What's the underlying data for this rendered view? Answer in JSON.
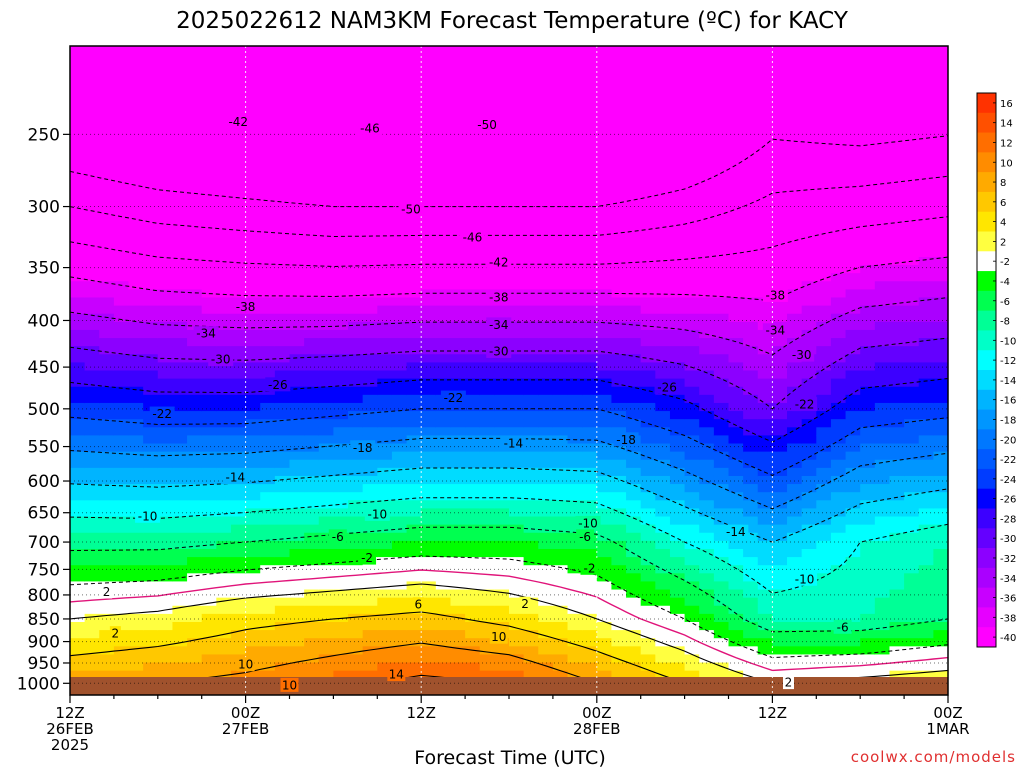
{
  "chart_data": {
    "type": "heatmap",
    "title": "2025022612 NAM3KM Forecast Temperature (ºC) for KACY",
    "xlabel": "Forecast Time (UTC)",
    "ylabel": "",
    "y_scale": "log-pressure",
    "y_ticks": [
      250,
      300,
      350,
      400,
      450,
      500,
      550,
      600,
      650,
      700,
      750,
      800,
      850,
      900,
      950,
      1000
    ],
    "y_range_hpa": [
      1030,
      200
    ],
    "x_range_hours": [
      0,
      60
    ],
    "x_ticks": [
      {
        "hour": 0,
        "line1": "12Z",
        "line2": "26FEB",
        "line3": "2025"
      },
      {
        "hour": 12,
        "line1": "00Z",
        "line2": "27FEB",
        "line3": ""
      },
      {
        "hour": 24,
        "line1": "12Z",
        "line2": "",
        "line3": ""
      },
      {
        "hour": 36,
        "line1": "00Z",
        "line2": "28FEB",
        "line3": ""
      },
      {
        "hour": 48,
        "line1": "12Z",
        "line2": "",
        "line3": ""
      },
      {
        "hour": 60,
        "line1": "00Z",
        "line2": "1MAR",
        "line3": ""
      }
    ],
    "grid": true,
    "legend": "right",
    "colorbar": {
      "levels": [
        16,
        14,
        12,
        10,
        8,
        6,
        4,
        2,
        -2,
        -4,
        -6,
        -8,
        -10,
        -12,
        -14,
        -16,
        -18,
        -20,
        -22,
        -24,
        -26,
        -28,
        -30,
        -32,
        -34,
        -36,
        -38,
        -40
      ],
      "colors": [
        "#ff3200",
        "#ff5000",
        "#ff6e00",
        "#ff8c00",
        "#ffaa00",
        "#ffc800",
        "#ffe600",
        "#ffff40",
        "#ffffff",
        "#00ff00",
        "#00ff50",
        "#00ff96",
        "#00ffc8",
        "#00ffff",
        "#00dcff",
        "#00b4ff",
        "#0096ff",
        "#0078ff",
        "#005aff",
        "#003cff",
        "#0000ff",
        "#3c00ff",
        "#6400ff",
        "#8c00ff",
        "#aa00ff",
        "#c800ff",
        "#e600ff",
        "#ff00ff"
      ]
    },
    "hours": [
      0,
      6,
      12,
      18,
      24,
      30,
      36,
      42,
      48,
      54,
      60
    ],
    "temperature_profiles": [
      {
        "hour": 0,
        "t1000": 9,
        "t850": 2,
        "t700": -7,
        "t500": -23,
        "t300": -46
      },
      {
        "hour": 6,
        "t1000": 10,
        "t850": 3,
        "t700": -7,
        "t500": -24,
        "t300": -48
      },
      {
        "hour": 12,
        "t1000": 11,
        "t850": 5,
        "t700": -6,
        "t500": -24,
        "t300": -49
      },
      {
        "hour": 18,
        "t1000": 13,
        "t850": 6,
        "t700": -5,
        "t500": -23,
        "t300": -50
      },
      {
        "hour": 24,
        "t1000": 15,
        "t850": 7,
        "t700": -4,
        "t500": -22,
        "t300": -50
      },
      {
        "hour": 30,
        "t1000": 14,
        "t850": 5,
        "t700": -4,
        "t500": -22,
        "t300": -50
      },
      {
        "hour": 36,
        "t1000": 10,
        "t850": 2,
        "t700": -5,
        "t500": -22,
        "t300": -50
      },
      {
        "hour": 42,
        "t1000": 6,
        "t850": -2,
        "t700": -10,
        "t500": -25,
        "t300": -48
      },
      {
        "hour": 48,
        "t1000": 2,
        "t850": -8,
        "t700": -14,
        "t500": -30,
        "t300": -45
      },
      {
        "hour": 54,
        "t1000": 3,
        "t850": -8,
        "t700": -10,
        "t500": -24,
        "t300": -44
      },
      {
        "hour": 60,
        "t1000": 4,
        "t850": -6,
        "t700": -8,
        "t500": -23,
        "t300": -43
      }
    ],
    "contour_labels": [
      {
        "text": "-42",
        "hour": 11.5,
        "p": 242
      },
      {
        "text": "-46",
        "hour": 20.5,
        "p": 246
      },
      {
        "text": "-50",
        "hour": 28.5,
        "p": 244
      },
      {
        "text": "-50",
        "hour": 23.3,
        "p": 302
      },
      {
        "text": "-46",
        "hour": 27.5,
        "p": 324
      },
      {
        "text": "-42",
        "hour": 29.3,
        "p": 345
      },
      {
        "text": "-38",
        "hour": 12.0,
        "p": 386
      },
      {
        "text": "-38",
        "hour": 29.3,
        "p": 377
      },
      {
        "text": "-38",
        "hour": 48.2,
        "p": 375
      },
      {
        "text": "-34",
        "hour": 9.3,
        "p": 413
      },
      {
        "text": "-34",
        "hour": 29.3,
        "p": 404
      },
      {
        "text": "-34",
        "hour": 48.2,
        "p": 410
      },
      {
        "text": "-30",
        "hour": 10.3,
        "p": 441
      },
      {
        "text": "-30",
        "hour": 29.3,
        "p": 432
      },
      {
        "text": "-30",
        "hour": 50.0,
        "p": 436
      },
      {
        "text": "-26",
        "hour": 14.2,
        "p": 470
      },
      {
        "text": "-26",
        "hour": 40.8,
        "p": 473
      },
      {
        "text": "-22",
        "hour": 6.3,
        "p": 506
      },
      {
        "text": "-22",
        "hour": 26.2,
        "p": 486
      },
      {
        "text": "-22",
        "hour": 50.2,
        "p": 494
      },
      {
        "text": "-18",
        "hour": 20.0,
        "p": 551
      },
      {
        "text": "-18",
        "hour": 38.0,
        "p": 540
      },
      {
        "text": "-14",
        "hour": 11.3,
        "p": 594
      },
      {
        "text": "-14",
        "hour": 30.3,
        "p": 545
      },
      {
        "text": "-14",
        "hour": 45.5,
        "p": 682
      },
      {
        "text": "-10",
        "hour": 5.3,
        "p": 655
      },
      {
        "text": "-10",
        "hour": 21.0,
        "p": 652
      },
      {
        "text": "-10",
        "hour": 35.4,
        "p": 667
      },
      {
        "text": "-10",
        "hour": 50.2,
        "p": 768
      },
      {
        "text": "-6",
        "hour": 18.3,
        "p": 690
      },
      {
        "text": "-6",
        "hour": 35.2,
        "p": 690
      },
      {
        "text": "-6",
        "hour": 52.8,
        "p": 867
      },
      {
        "text": "-2",
        "hour": 20.3,
        "p": 728
      },
      {
        "text": "-2",
        "hour": 35.5,
        "p": 747
      },
      {
        "text": "2",
        "hour": 2.5,
        "p": 793
      },
      {
        "text": "2",
        "hour": 3.1,
        "p": 881
      },
      {
        "text": "2",
        "hour": 31.1,
        "p": 818
      },
      {
        "text": "2",
        "hour": 49.1,
        "p": 997
      },
      {
        "text": "6",
        "hour": 23.8,
        "p": 819
      },
      {
        "text": "10",
        "hour": 12.0,
        "p": 953
      },
      {
        "text": "10",
        "hour": 29.3,
        "p": 889
      },
      {
        "text": "10",
        "hour": 15.0,
        "p": 1004
      },
      {
        "text": "14",
        "hour": 22.3,
        "p": 977
      }
    ]
  },
  "credit": "coolwx.com/models"
}
